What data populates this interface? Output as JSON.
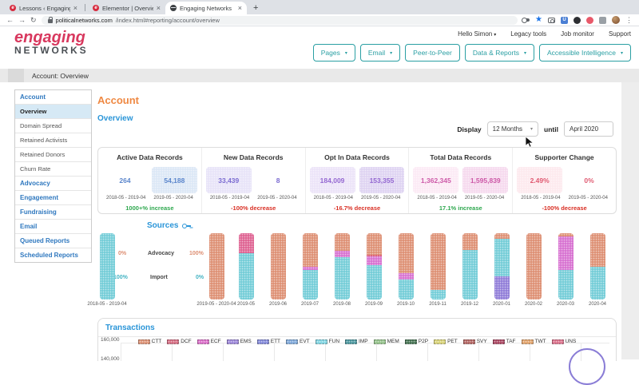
{
  "browser": {
    "tabs": [
      {
        "title": "Lessons ‹ Engaging Networks",
        "icon": "elementor",
        "active": false
      },
      {
        "title": "Elementor | Overview Report",
        "icon": "elementor",
        "active": false
      },
      {
        "title": "Engaging Networks",
        "icon": "globe",
        "active": true
      }
    ],
    "new_tab_label": "+",
    "url_domain": "politicalnetworks.com",
    "url_path": "/index.html#reporting/account/overview",
    "toolbar_icons": [
      "key-icon",
      "bookmark-star-icon",
      "camera-icon",
      "extension-u-icon",
      "extension-dark-icon",
      "extension-red-icon",
      "puzzle-extensions-icon",
      "profile-avatar",
      "menu-dots-icon"
    ]
  },
  "header": {
    "logo": {
      "line1": "engaging",
      "line2": "NETWORKS"
    },
    "greeting": "Hello Simon",
    "links": [
      "Legacy tools",
      "Job monitor",
      "Support"
    ],
    "nav_buttons": [
      {
        "label": "Pages",
        "caret": true
      },
      {
        "label": "Email",
        "caret": true
      },
      {
        "label": "Peer-to-Peer",
        "caret": false
      },
      {
        "label": "Data & Reports",
        "caret": true
      },
      {
        "label": "Accessible Intelligence",
        "caret": true
      }
    ]
  },
  "breadcrumb": "Account: Overview",
  "sidebar": {
    "items": [
      {
        "label": "Account",
        "type": "section",
        "active": false
      },
      {
        "label": "Overview",
        "type": "item",
        "active": true
      },
      {
        "label": "Domain Spread",
        "type": "item",
        "active": false
      },
      {
        "label": "Retained Activists",
        "type": "item",
        "active": false
      },
      {
        "label": "Retained Donors",
        "type": "item",
        "active": false
      },
      {
        "label": "Churn Rate",
        "type": "item",
        "active": false
      },
      {
        "label": "Advocacy",
        "type": "section",
        "active": false
      },
      {
        "label": "Engagement",
        "type": "section",
        "active": false
      },
      {
        "label": "Fundraising",
        "type": "section",
        "active": false
      },
      {
        "label": "Email",
        "type": "section",
        "active": false
      },
      {
        "label": "Queued Reports",
        "type": "section",
        "active": false
      },
      {
        "label": "Scheduled Reports",
        "type": "section",
        "active": false
      }
    ]
  },
  "main": {
    "page_title": "Account",
    "overview_title": "Overview",
    "display": {
      "label": "Display",
      "period": "12 Months",
      "until": "until",
      "date": "April 2020"
    },
    "stats_cards": [
      {
        "title": "Active Data Records",
        "color": "#5b86cc",
        "value1": "264",
        "value1_bg": null,
        "value2": "54,188",
        "value2_bg": "#dbe7f6",
        "date1": "2018-05 - 2019-04",
        "date2": "2019-05 - 2020-04",
        "change": "1000+% increase",
        "change_color": "#2fa84f"
      },
      {
        "title": "New Data Records",
        "color": "#7b6bd1",
        "value1": "33,439",
        "value1_bg": "#e7e3f8",
        "value2": "8",
        "value2_bg": null,
        "date1": "2018-05 - 2019-04",
        "date2": "2019-05 - 2020-04",
        "change": "-100% decrease",
        "change_color": "#d93025"
      },
      {
        "title": "Opt In Data Records",
        "color": "#9468d1",
        "value1": "184,009",
        "value1_bg": "#ece3f8",
        "value2": "153,355",
        "value2_bg": "#ded3f2",
        "date1": "2018-05 - 2019-04",
        "date2": "2019-05 - 2020-04",
        "change": "-16.7% decrease",
        "change_color": "#d93025"
      },
      {
        "title": "Total Data Records",
        "color": "#cd5aa8",
        "value1": "1,362,345",
        "value1_bg": "#fceaf5",
        "value2": "1,595,839",
        "value2_bg": "#f6d9ee",
        "date1": "2018-05 - 2019-04",
        "date2": "2019-05 - 2020-04",
        "change": "17.1% increase",
        "change_color": "#2fa84f"
      },
      {
        "title": "Supporter Change",
        "color": "#e05a71",
        "value1": "2.49%",
        "value1_bg": "#fde9ee",
        "value2": "0%",
        "value2_bg": null,
        "date1": "2018-05 - 2019-04",
        "date2": "2019-05 - 2020-04",
        "change": "-100% decrease",
        "change_color": "#d93025"
      }
    ]
  },
  "chart_data": [
    {
      "type": "bar",
      "title": "Sources",
      "stacking": "percent",
      "legend": [
        {
          "label": "Advocacy",
          "color": "#dd8e72"
        },
        {
          "label": "Import",
          "color": "#72ccd7"
        }
      ],
      "summary_bars": [
        {
          "label": "2018-05 - 2019-04",
          "advocacy_pct": "0%",
          "import_pct": "100%",
          "segments": [
            {
              "name": "Import",
              "color": "#72ccd7",
              "pct": 100
            }
          ]
        },
        {
          "label": "2019-05 - 2020-04",
          "advocacy_pct": "100%",
          "import_pct": "0%",
          "segments": [
            {
              "name": "Advocacy",
              "color": "#dd8e72",
              "pct": 100
            }
          ]
        }
      ],
      "monthly_bars": [
        {
          "label": "2019-05",
          "segments": [
            {
              "name": "Import",
              "color": "#72ccd7",
              "pct": 70
            },
            {
              "name": "Other",
              "color": "#de6090",
              "pct": 30
            }
          ]
        },
        {
          "label": "2019-06",
          "segments": [
            {
              "name": "Advocacy",
              "color": "#dd8e72",
              "pct": 100
            }
          ]
        },
        {
          "label": "2019-07",
          "segments": [
            {
              "name": "Import",
              "color": "#72ccd7",
              "pct": 44
            },
            {
              "name": "Other",
              "color": "#d76fd0",
              "pct": 6
            },
            {
              "name": "Advocacy",
              "color": "#dd8e72",
              "pct": 50
            }
          ]
        },
        {
          "label": "2019-08",
          "segments": [
            {
              "name": "Import",
              "color": "#72ccd7",
              "pct": 64
            },
            {
              "name": "Other",
              "color": "#d76fd0",
              "pct": 9
            },
            {
              "name": "Advocacy",
              "color": "#dd8e72",
              "pct": 27
            }
          ]
        },
        {
          "label": "2019-09",
          "segments": [
            {
              "name": "Import",
              "color": "#72ccd7",
              "pct": 52
            },
            {
              "name": "Other",
              "color": "#d76fd0",
              "pct": 13
            },
            {
              "name": "Other2",
              "color": "#d9556a",
              "pct": 2
            },
            {
              "name": "Advocacy",
              "color": "#dd8e72",
              "pct": 33
            }
          ]
        },
        {
          "label": "2019-10",
          "segments": [
            {
              "name": "Import",
              "color": "#72ccd7",
              "pct": 30
            },
            {
              "name": "Other",
              "color": "#d76fd0",
              "pct": 10
            },
            {
              "name": "Advocacy",
              "color": "#dd8e72",
              "pct": 60
            }
          ]
        },
        {
          "label": "2019-11",
          "segments": [
            {
              "name": "Import",
              "color": "#72ccd7",
              "pct": 15
            },
            {
              "name": "Advocacy",
              "color": "#dd8e72",
              "pct": 85
            }
          ]
        },
        {
          "label": "2019-12",
          "segments": [
            {
              "name": "Import",
              "color": "#72ccd7",
              "pct": 75
            },
            {
              "name": "Advocacy",
              "color": "#dd8e72",
              "pct": 25
            }
          ]
        },
        {
          "label": "2020-01",
          "segments": [
            {
              "name": "Other3",
              "color": "#8f7bd8",
              "pct": 35
            },
            {
              "name": "Import",
              "color": "#72ccd7",
              "pct": 57
            },
            {
              "name": "Advocacy",
              "color": "#dd8e72",
              "pct": 8
            }
          ]
        },
        {
          "label": "2020-02",
          "segments": [
            {
              "name": "Advocacy",
              "color": "#dd8e72",
              "pct": 100
            }
          ]
        },
        {
          "label": "2020-03",
          "segments": [
            {
              "name": "Import",
              "color": "#72ccd7",
              "pct": 45
            },
            {
              "name": "Other",
              "color": "#d76fd0",
              "pct": 50
            },
            {
              "name": "Advocacy",
              "color": "#dd8e72",
              "pct": 5
            }
          ]
        },
        {
          "label": "2020-04",
          "segments": [
            {
              "name": "Import",
              "color": "#72ccd7",
              "pct": 50
            },
            {
              "name": "Advocacy",
              "color": "#dd8e72",
              "pct": 50
            }
          ]
        }
      ]
    },
    {
      "type": "line",
      "title": "Transactions",
      "y_axis_ticks_visible": [
        "160,000",
        "140,000"
      ],
      "legend": [
        {
          "code": "CTT",
          "color": "#dd9173"
        },
        {
          "code": "DCF",
          "color": "#d4697f"
        },
        {
          "code": "ECF",
          "color": "#da6cc8"
        },
        {
          "code": "EMS",
          "color": "#9a84d8"
        },
        {
          "code": "ETT",
          "color": "#8187d9"
        },
        {
          "code": "EVT",
          "color": "#7da7d9"
        },
        {
          "code": "FUN",
          "color": "#7fd4e2"
        },
        {
          "code": "IMP",
          "color": "#47949c"
        },
        {
          "code": "MEM",
          "color": "#92c188"
        },
        {
          "code": "P2P",
          "color": "#41704f"
        },
        {
          "code": "PET",
          "color": "#d8d275"
        },
        {
          "code": "SVY",
          "color": "#b2625f"
        },
        {
          "code": "TAF",
          "color": "#a9435f"
        },
        {
          "code": "TWT",
          "color": "#e2a269"
        },
        {
          "code": "UNS",
          "color": "#da6d88"
        }
      ]
    }
  ]
}
